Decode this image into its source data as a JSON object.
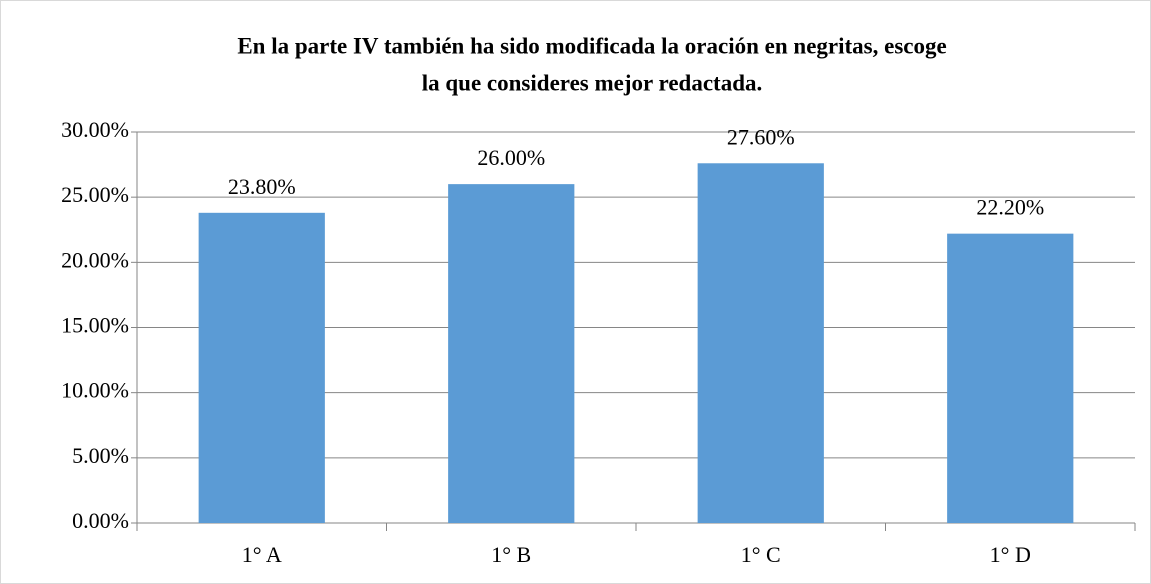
{
  "chart_data": {
    "type": "bar",
    "title": [
      "En la parte IV también ha sido modificada la oración en negritas, escoge",
      "la que consideres mejor redactada."
    ],
    "categories": [
      "1° A",
      "1° B",
      "1° C",
      "1° D"
    ],
    "values": [
      23.8,
      26.0,
      27.6,
      22.2
    ],
    "value_labels": [
      "23.80%",
      "26.00%",
      "27.60%",
      "22.20%"
    ],
    "color": "#5b9bd5",
    "ylim": [
      0,
      30
    ],
    "yticks": [
      {
        "value": 0,
        "label": "0.00%"
      },
      {
        "value": 5,
        "label": "5.00%"
      },
      {
        "value": 10,
        "label": "10.00%"
      },
      {
        "value": 15,
        "label": "15.00%"
      },
      {
        "value": 20,
        "label": "20.00%"
      },
      {
        "value": 25,
        "label": "25.00%"
      },
      {
        "value": 30,
        "label": "30.00%"
      }
    ],
    "grid": true
  }
}
